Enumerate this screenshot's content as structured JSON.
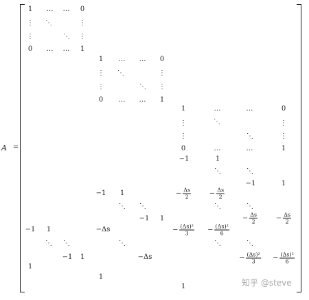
{
  "equation": {
    "lhs_symbol": "A",
    "equals": "="
  },
  "glyphs": {
    "hdots": "…",
    "vdots": "⋮",
    "ddots": "⋱"
  },
  "cells": {
    "one": "1",
    "zero": "0",
    "minus_one": "−1",
    "minus_delta_s": "−Δs"
  },
  "fractions": {
    "ds_num": "Δs",
    "ds2_num": "(Δs)²",
    "den2": "2",
    "den3": "3",
    "den6": "6",
    "minus": "−"
  },
  "watermark": {
    "text": "知乎 @steve"
  }
}
